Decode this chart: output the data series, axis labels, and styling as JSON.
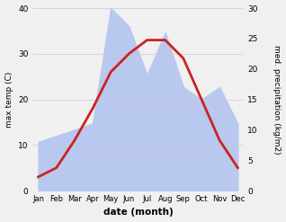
{
  "months": [
    "Jan",
    "Feb",
    "Mar",
    "Apr",
    "May",
    "Jun",
    "Jul",
    "Aug",
    "Sep",
    "Oct",
    "Nov",
    "Dec"
  ],
  "temp": [
    3,
    5,
    11,
    18,
    26,
    30,
    33,
    33,
    29,
    20,
    11,
    5
  ],
  "precip": [
    8,
    9,
    10,
    11,
    30,
    27,
    19,
    26,
    17,
    15,
    17,
    11
  ],
  "temp_color": "#cc2222",
  "precip_color": "#b8c8ee",
  "ylim_left": [
    0,
    40
  ],
  "ylim_right": [
    0,
    30
  ],
  "ylabel_left": "max temp (C)",
  "ylabel_right": "med. precipitation (kg/m2)",
  "xlabel": "date (month)",
  "bg_color": "#f0f0f0",
  "grid_color": "#cccccc",
  "temp_linewidth": 2.0,
  "left_yticks": [
    0,
    10,
    20,
    30,
    40
  ],
  "right_yticks": [
    0,
    5,
    10,
    15,
    20,
    25,
    30
  ]
}
